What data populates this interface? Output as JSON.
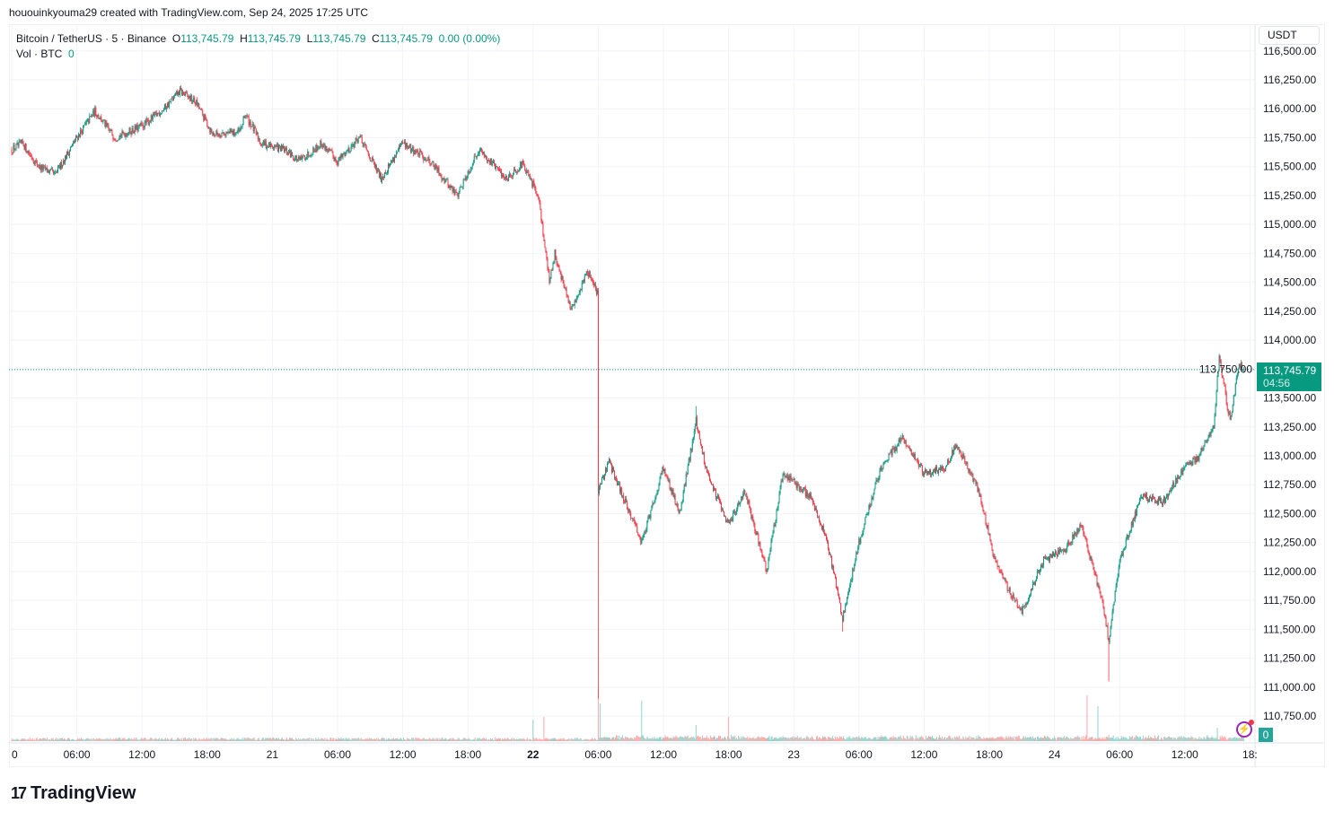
{
  "credit": "hououinkyouma29 created with TradingView.com, Sep 24, 2025 17:25 UTC",
  "legend": {
    "symbol": "Bitcoin / TetherUS · 5 · Binance",
    "o_label": "O",
    "o": "113,745.79",
    "h_label": "H",
    "h": "113,745.79",
    "l_label": "L",
    "l": "113,745.79",
    "c_label": "C",
    "c": "113,745.79",
    "change": "0.00 (0.00%)",
    "vol_label": "Vol · BTC",
    "vol": "0"
  },
  "currency_button": "USDT",
  "last_price": {
    "price": "113,745.79",
    "countdown": "04:56"
  },
  "volume_axis_label": "0",
  "logo": {
    "mark": "17",
    "text": "TradingView"
  },
  "colors": {
    "up": "#089981",
    "down": "#f23645",
    "vol_up": "#92d2cc",
    "vol_down": "#f7a9a7",
    "grid": "#f0f3fa"
  },
  "chart_data": {
    "type": "candlestick",
    "interval": "5",
    "ylim": [
      110600,
      116550
    ],
    "y_ticks": [
      "110,750.00",
      "111,000.00",
      "111,250.00",
      "111,500.00",
      "111,750.00",
      "112,000.00",
      "112,250.00",
      "112,500.00",
      "112,750.00",
      "113,000.00",
      "113,250.00",
      "113,500.00",
      "113,750.00",
      "114,000.00",
      "114,250.00",
      "114,500.00",
      "114,750.00",
      "115,000.00",
      "115,250.00",
      "115,500.00",
      "115,750.00",
      "116,000.00",
      "116,250.00",
      "116,500.00"
    ],
    "x_ticks": [
      "0",
      "06:00",
      "12:00",
      "18:00",
      "21",
      "06:00",
      "12:00",
      "18:00",
      "22",
      "06:00",
      "12:00",
      "18:00",
      "23",
      "06:00",
      "12:00",
      "18:00",
      "24",
      "06:00",
      "12:00",
      "18:"
    ],
    "grid": true,
    "last_value": 113745.79,
    "price_path": [
      [
        "09-20 00:00",
        115650
      ],
      [
        "09-20 01:00",
        115700
      ],
      [
        "09-20 02:30",
        115500
      ],
      [
        "09-20 04:00",
        115430
      ],
      [
        "09-20 06:00",
        115750
      ],
      [
        "09-20 07:40",
        115980
      ],
      [
        "09-20 09:30",
        115750
      ],
      [
        "09-20 12:00",
        115850
      ],
      [
        "09-20 14:00",
        116000
      ],
      [
        "09-20 15:30",
        116150
      ],
      [
        "09-20 17:00",
        116050
      ],
      [
        "09-20 18:30",
        115780
      ],
      [
        "09-20 21:00",
        115800
      ],
      [
        "09-20 21:30",
        115950
      ],
      [
        "09-20 23:00",
        115700
      ],
      [
        "09-21 01:00",
        115650
      ],
      [
        "09-21 02:30",
        115550
      ],
      [
        "09-21 04:30",
        115700
      ],
      [
        "09-21 06:00",
        115550
      ],
      [
        "09-21 08:00",
        115750
      ],
      [
        "09-21 10:00",
        115400
      ],
      [
        "09-21 12:00",
        115700
      ],
      [
        "09-21 14:30",
        115550
      ],
      [
        "09-21 17:00",
        115250
      ],
      [
        "09-21 19:00",
        115650
      ],
      [
        "09-21 21:30",
        115400
      ],
      [
        "09-21 23:00",
        115520
      ],
      [
        "09-22 00:30",
        115250
      ],
      [
        "09-22 01:30",
        114500
      ],
      [
        "09-22 02:00",
        114750
      ],
      [
        "09-22 03:30",
        114250
      ],
      [
        "09-22 05:00",
        114600
      ],
      [
        "09-22 05:55",
        114400
      ],
      [
        "09-22 06:00",
        112700
      ],
      [
        "09-22 07:00",
        112950
      ],
      [
        "09-22 08:30",
        112600
      ],
      [
        "09-22 10:00",
        112250
      ],
      [
        "09-22 12:00",
        112900
      ],
      [
        "09-22 13:30",
        112500
      ],
      [
        "09-22 15:00",
        113300
      ],
      [
        "09-22 16:00",
        112850
      ],
      [
        "09-22 18:00",
        112400
      ],
      [
        "09-22 19:30",
        112700
      ],
      [
        "09-22 21:30",
        112000
      ],
      [
        "09-22 23:00",
        112850
      ],
      [
        "09-23 01:30",
        112650
      ],
      [
        "09-23 03:00",
        112300
      ],
      [
        "09-23 04:30",
        111600
      ],
      [
        "09-23 06:00",
        112250
      ],
      [
        "09-23 08:00",
        112900
      ],
      [
        "09-23 10:00",
        113150
      ],
      [
        "09-23 12:00",
        112850
      ],
      [
        "09-23 14:00",
        112900
      ],
      [
        "09-23 15:00",
        113100
      ],
      [
        "09-23 17:00",
        112700
      ],
      [
        "09-23 18:30",
        112100
      ],
      [
        "09-23 20:00",
        111800
      ],
      [
        "09-23 21:00",
        111650
      ],
      [
        "09-23 23:00",
        112100
      ],
      [
        "09-24 01:00",
        112200
      ],
      [
        "09-24 02:30",
        112400
      ],
      [
        "09-24 03:30",
        112050
      ],
      [
        "09-24 04:30",
        111700
      ],
      [
        "09-24 05:00",
        111400
      ],
      [
        "09-24 06:00",
        112100
      ],
      [
        "09-24 08:00",
        112650
      ],
      [
        "09-24 10:00",
        112600
      ],
      [
        "09-24 12:00",
        112900
      ],
      [
        "09-24 13:20",
        113000
      ],
      [
        "09-24 14:40",
        113250
      ],
      [
        "09-24 15:10",
        113850
      ],
      [
        "09-24 16:10",
        113300
      ],
      [
        "09-24 17:00",
        113800
      ],
      [
        "09-24 17:25",
        113745.79
      ]
    ],
    "wick_extremes": [
      [
        "09-22 06:00",
        110900
      ],
      [
        "09-24 05:00",
        111050
      ],
      [
        "09-23 04:30",
        111480
      ],
      [
        "09-22 15:00",
        113430
      ]
    ],
    "volume_spikes": [
      [
        "09-22 00:00",
        0.4
      ],
      [
        "09-22 01:00",
        0.45
      ],
      [
        "09-22 06:00",
        1.0
      ],
      [
        "09-22 06:10",
        0.7
      ],
      [
        "09-22 10:00",
        0.75
      ],
      [
        "09-22 15:00",
        0.3
      ],
      [
        "09-22 18:00",
        0.45
      ],
      [
        "09-24 03:00",
        0.85
      ],
      [
        "09-24 04:00",
        0.65
      ],
      [
        "09-24 15:00",
        0.25
      ]
    ]
  }
}
